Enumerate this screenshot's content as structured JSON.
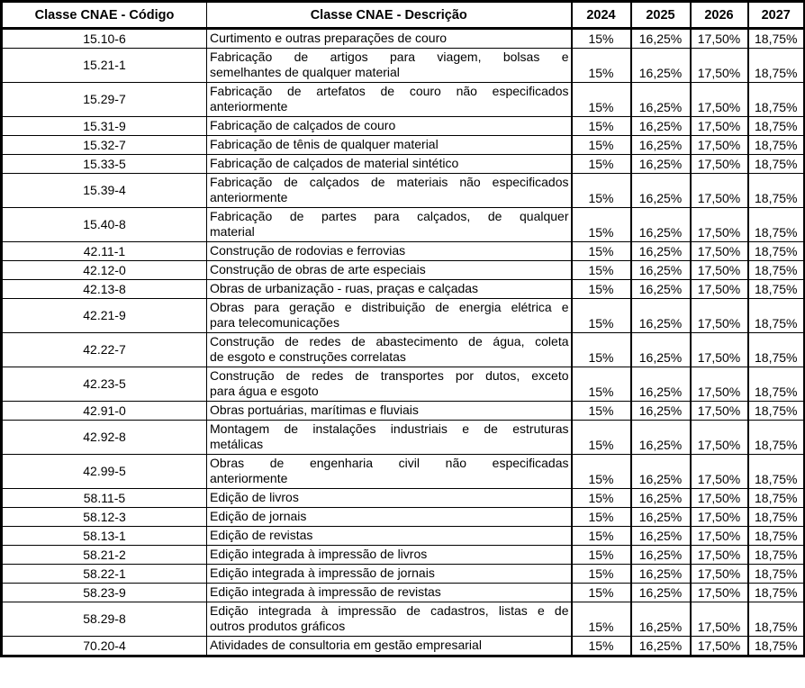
{
  "table": {
    "headers": {
      "code": "Classe CNAE - Código",
      "description": "Classe CNAE - Descrição",
      "years": [
        "2024",
        "2025",
        "2026",
        "2027"
      ]
    },
    "rows": [
      {
        "code": "15.10-6",
        "description": "Curtimento e outras preparações de couro",
        "rates": [
          "15%",
          "16,25%",
          "17,50%",
          "18,75%"
        ]
      },
      {
        "code": "15.21-1",
        "description": "Fabricação de artigos para viagem, bolsas e\nsemelhantes de qualquer material",
        "rates": [
          "15%",
          "16,25%",
          "17,50%",
          "18,75%"
        ]
      },
      {
        "code": "15.29-7",
        "description": "Fabricação de artefatos de couro não especificados\nanteriormente",
        "rates": [
          "15%",
          "16,25%",
          "17,50%",
          "18,75%"
        ]
      },
      {
        "code": "15.31-9",
        "description": "Fabricação de calçados de couro",
        "rates": [
          "15%",
          "16,25%",
          "17,50%",
          "18,75%"
        ]
      },
      {
        "code": "15.32-7",
        "description": "Fabricação de tênis de qualquer material",
        "rates": [
          "15%",
          "16,25%",
          "17,50%",
          "18,75%"
        ]
      },
      {
        "code": "15.33-5",
        "description": "Fabricação de calçados de material sintético",
        "rates": [
          "15%",
          "16,25%",
          "17,50%",
          "18,75%"
        ]
      },
      {
        "code": "15.39-4",
        "description": "Fabricação de calçados de materiais não especificados\nanteriormente",
        "rates": [
          "15%",
          "16,25%",
          "17,50%",
          "18,75%"
        ]
      },
      {
        "code": "15.40-8",
        "description": "Fabricação de partes para calçados, de qualquer\nmaterial",
        "rates": [
          "15%",
          "16,25%",
          "17,50%",
          "18,75%"
        ]
      },
      {
        "code": "42.11-1",
        "description": "Construção de rodovias e ferrovias",
        "rates": [
          "15%",
          "16,25%",
          "17,50%",
          "18,75%"
        ]
      },
      {
        "code": "42.12-0",
        "description": "Construção de obras de arte especiais",
        "rates": [
          "15%",
          "16,25%",
          "17,50%",
          "18,75%"
        ]
      },
      {
        "code": "42.13-8",
        "description": "Obras de urbanização - ruas, praças e calçadas",
        "rates": [
          "15%",
          "16,25%",
          "17,50%",
          "18,75%"
        ]
      },
      {
        "code": "42.21-9",
        "description": "Obras para geração e distribuição de energia elétrica e\npara telecomunicações",
        "rates": [
          "15%",
          "16,25%",
          "17,50%",
          "18,75%"
        ]
      },
      {
        "code": "42.22-7",
        "description": "Construção de redes de abastecimento de água, coleta\nde esgoto e construções correlatas",
        "rates": [
          "15%",
          "16,25%",
          "17,50%",
          "18,75%"
        ]
      },
      {
        "code": "42.23-5",
        "description": "Construção de redes de transportes por dutos, exceto\npara água e esgoto",
        "rates": [
          "15%",
          "16,25%",
          "17,50%",
          "18,75%"
        ]
      },
      {
        "code": "42.91-0",
        "description": "Obras portuárias, marítimas e fluviais",
        "rates": [
          "15%",
          "16,25%",
          "17,50%",
          "18,75%"
        ]
      },
      {
        "code": "42.92-8",
        "description": "Montagem de instalações industriais e de estruturas\nmetálicas",
        "rates": [
          "15%",
          "16,25%",
          "17,50%",
          "18,75%"
        ]
      },
      {
        "code": "42.99-5",
        "description": "Obras de engenharia civil não especificadas\nanteriormente",
        "rates": [
          "15%",
          "16,25%",
          "17,50%",
          "18,75%"
        ]
      },
      {
        "code": "58.11-5",
        "description": "Edição de livros",
        "rates": [
          "15%",
          "16,25%",
          "17,50%",
          "18,75%"
        ]
      },
      {
        "code": "58.12-3",
        "description": "Edição de jornais",
        "rates": [
          "15%",
          "16,25%",
          "17,50%",
          "18,75%"
        ]
      },
      {
        "code": "58.13-1",
        "description": "Edição de revistas",
        "rates": [
          "15%",
          "16,25%",
          "17,50%",
          "18,75%"
        ]
      },
      {
        "code": "58.21-2",
        "description": "Edição integrada à impressão de livros",
        "rates": [
          "15%",
          "16,25%",
          "17,50%",
          "18,75%"
        ]
      },
      {
        "code": "58.22-1",
        "description": "Edição integrada à impressão de jornais",
        "rates": [
          "15%",
          "16,25%",
          "17,50%",
          "18,75%"
        ]
      },
      {
        "code": "58.23-9",
        "description": "Edição integrada à impressão de revistas",
        "rates": [
          "15%",
          "16,25%",
          "17,50%",
          "18,75%"
        ]
      },
      {
        "code": "58.29-8",
        "description": "Edição integrada à impressão de cadastros, listas e de\noutros produtos gráficos",
        "rates": [
          "15%",
          "16,25%",
          "17,50%",
          "18,75%"
        ]
      },
      {
        "code": "70.20-4",
        "description": "Atividades de consultoria em gestão empresarial",
        "rates": [
          "15%",
          "16,25%",
          "17,50%",
          "18,75%"
        ]
      }
    ]
  },
  "colors": {
    "text": "#000000",
    "border": "#000000",
    "background": "#ffffff"
  }
}
